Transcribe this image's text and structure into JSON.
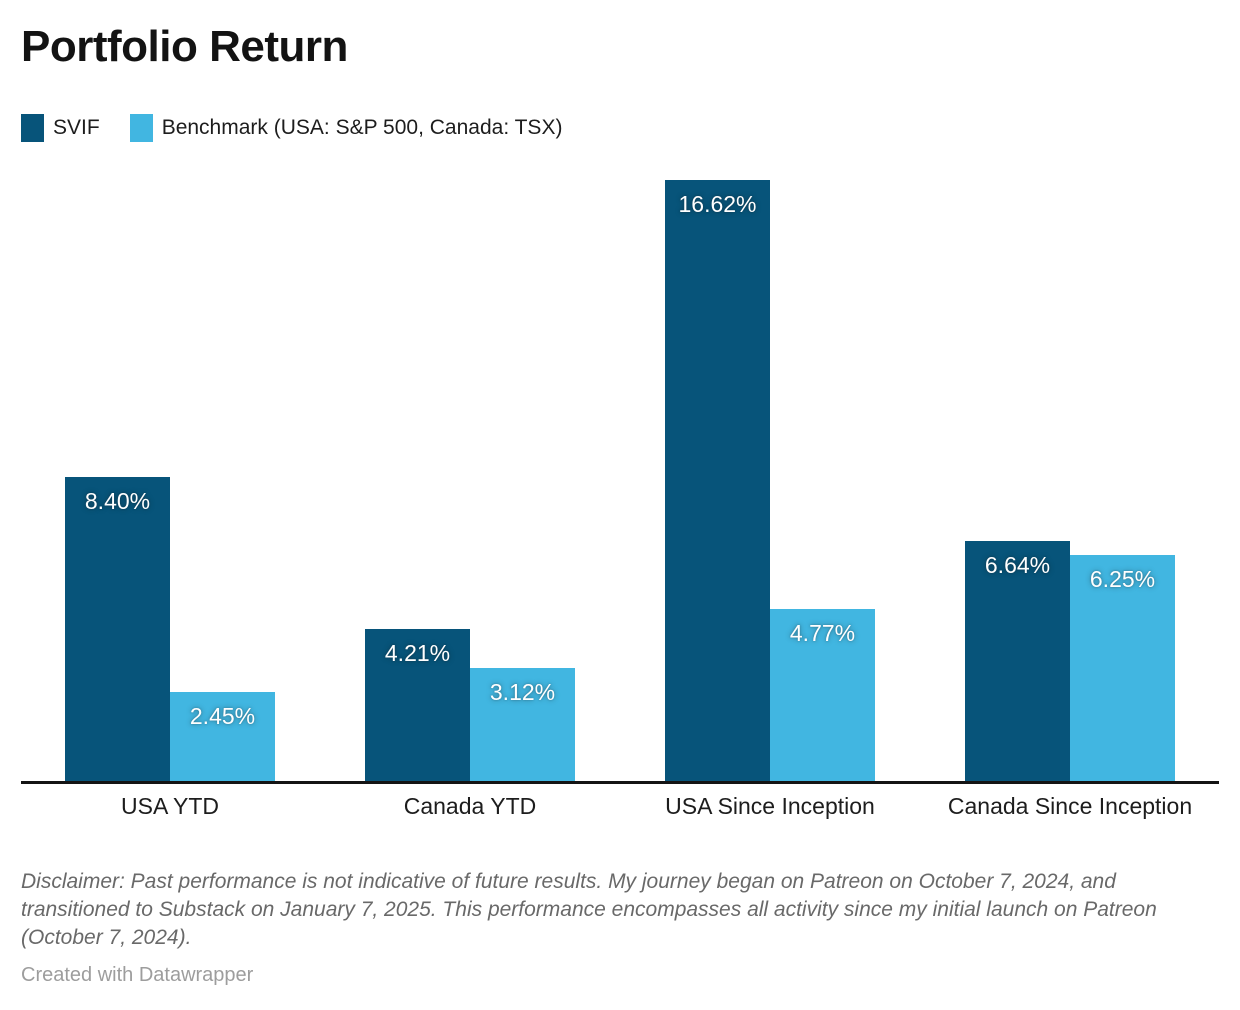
{
  "title": "Portfolio Return",
  "legend": {
    "items": [
      {
        "label": "SVIF",
        "color": "#07547a"
      },
      {
        "label": "Benchmark (USA: S&P 500, Canada: TSX)",
        "color": "#41b6e1"
      }
    ]
  },
  "chart_data": {
    "type": "bar",
    "title": "Portfolio Return",
    "categories": [
      "USA YTD",
      "Canada YTD",
      "USA Since Inception",
      "Canada Since Inception"
    ],
    "series": [
      {
        "name": "SVIF",
        "color": "#07547a",
        "values": [
          8.4,
          4.21,
          16.62,
          6.64
        ],
        "labels": [
          "8.40%",
          "4.21%",
          "16.62%",
          "6.64%"
        ]
      },
      {
        "name": "Benchmark (USA: S&P 500, Canada: TSX)",
        "color": "#41b6e1",
        "values": [
          2.45,
          3.12,
          4.77,
          6.25
        ],
        "labels": [
          "2.45%",
          "3.12%",
          "4.77%",
          "6.25%"
        ]
      }
    ],
    "xlabel": "",
    "ylabel": "",
    "ylim": [
      0,
      17
    ],
    "grid": false,
    "legend_position": "top",
    "value_label_position": "inside-top",
    "axis_line_color": "#141414"
  },
  "disclaimer": "Disclaimer: Past performance is not indicative of future results. My journey began on Patreon on October 7, 2024, and transitioned to Substack on January 7, 2025. This performance encompasses all activity since my initial launch on Patreon (October 7, 2024).",
  "footer": "Created with Datawrapper"
}
